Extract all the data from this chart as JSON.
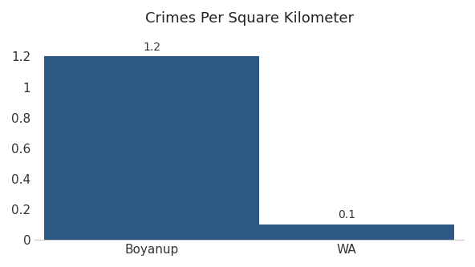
{
  "categories": [
    "Boyanup",
    "WA"
  ],
  "values": [
    1.2,
    0.1
  ],
  "bar_color_boyanup": "#2e5984",
  "bar_color_wa": "#2e5984",
  "title": "Crimes Per Square Kilometer",
  "title_fontsize": 13,
  "label_fontsize": 11,
  "value_fontsize": 10,
  "ylim": [
    0,
    1.35
  ],
  "yticks": [
    0,
    0.2,
    0.4,
    0.6,
    0.8,
    1.0,
    1.2
  ],
  "bar_width": 0.55,
  "background_color": "#ffffff",
  "x_positions": [
    0.25,
    0.75
  ],
  "xlim": [
    0,
    1
  ]
}
